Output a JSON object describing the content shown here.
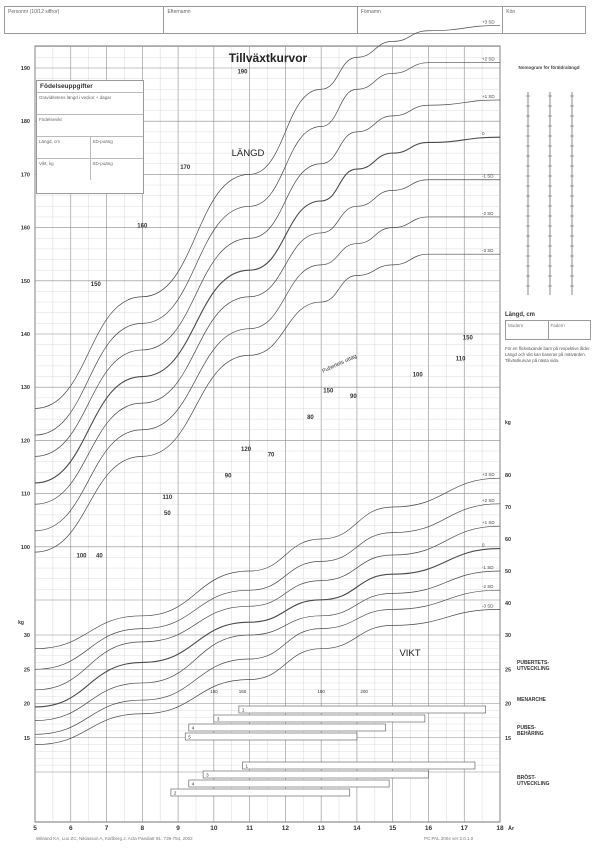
{
  "header": {
    "fields": [
      "Personnr (10/12 siffror)",
      "Efternamn",
      "Förnamn",
      "Kön"
    ]
  },
  "chart_data": {
    "type": "line",
    "title": "Tillväxtkurvor",
    "xlabel": "År",
    "x_unit": "År",
    "y_unit_weight": "kg",
    "xlim": [
      5,
      18
    ],
    "ylim_height": [
      90,
      200
    ],
    "ylim_weight": [
      10,
      30
    ],
    "x_ticks": [
      5,
      6,
      7,
      8,
      9,
      10,
      11,
      12,
      13,
      14,
      15,
      16,
      17,
      18
    ],
    "height_ticks_left": [
      100,
      110,
      120,
      130,
      140,
      150,
      160,
      170,
      180,
      190
    ],
    "weight_ticks_left": [
      15,
      20,
      25,
      30
    ],
    "weight_ticks_right": [
      15,
      20,
      25,
      30,
      40,
      50,
      60,
      70,
      80
    ],
    "section_labels": {
      "height": "LÄNGD",
      "weight": "VIKT",
      "puberty": "Pubertets uttag"
    },
    "grid": true,
    "height_series": [
      {
        "name": "+3 SD",
        "x": [
          5,
          8,
          11,
          13,
          14,
          15,
          16,
          18
        ],
        "y": [
          126,
          147,
          170,
          186,
          192,
          195,
          197,
          198
        ]
      },
      {
        "name": "+2 SD",
        "x": [
          5,
          8,
          11,
          13,
          14,
          15,
          16,
          18
        ],
        "y": [
          121,
          142,
          164,
          179,
          186,
          189,
          191,
          191
        ]
      },
      {
        "name": "+1 SD",
        "x": [
          5,
          8,
          11,
          13,
          14,
          15,
          16,
          18
        ],
        "y": [
          117,
          137,
          158,
          172,
          178,
          181,
          183,
          184
        ]
      },
      {
        "name": "0",
        "x": [
          5,
          8,
          11,
          13,
          14,
          15,
          16,
          18
        ],
        "y": [
          112,
          132,
          152,
          165,
          171,
          174,
          176,
          177
        ]
      },
      {
        "name": "-1 SD",
        "x": [
          5,
          8,
          11,
          13,
          14,
          15,
          16,
          18
        ],
        "y": [
          108,
          127,
          147,
          159,
          164,
          167,
          169,
          169
        ]
      },
      {
        "name": "-2 SD",
        "x": [
          5,
          8,
          11,
          13,
          14,
          15,
          16,
          18
        ],
        "y": [
          103,
          122,
          141,
          153,
          157,
          160,
          162,
          162
        ]
      },
      {
        "name": "-3 SD",
        "x": [
          5,
          8,
          11,
          13,
          14,
          15,
          16,
          18
        ],
        "y": [
          99,
          117,
          136,
          146,
          151,
          153,
          155,
          155
        ]
      }
    ],
    "weight_series": [
      {
        "name": "+3 SD",
        "x": [
          5,
          8,
          11,
          13,
          15,
          18
        ],
        "y": [
          28,
          36,
          50,
          60,
          70,
          79
        ]
      },
      {
        "name": "+2 SD",
        "x": [
          5,
          8,
          11,
          13,
          15,
          18
        ],
        "y": [
          25,
          32,
          44,
          53,
          62,
          71
        ]
      },
      {
        "name": "+1 SD",
        "x": [
          5,
          8,
          11,
          13,
          15,
          18
        ],
        "y": [
          22,
          29,
          39,
          47,
          55,
          64
        ]
      },
      {
        "name": "0",
        "x": [
          5,
          8,
          11,
          13,
          15,
          18
        ],
        "y": [
          19.5,
          26,
          34,
          41,
          49,
          57
        ]
      },
      {
        "name": "-1 SD",
        "x": [
          5,
          8,
          11,
          13,
          15,
          18
        ],
        "y": [
          17.5,
          23,
          30,
          36,
          43,
          50
        ]
      },
      {
        "name": "-2 SD",
        "x": [
          5,
          8,
          11,
          13,
          15,
          18
        ],
        "y": [
          15.5,
          20.5,
          26.5,
          32,
          38,
          44
        ]
      },
      {
        "name": "-3 SD",
        "x": [
          5,
          8,
          11,
          13,
          15,
          18
        ],
        "y": [
          14,
          18.5,
          23.5,
          28,
          33,
          38
        ]
      }
    ],
    "sd_labels": [
      "+3 SD",
      "+2 SD",
      "+1 SD",
      "0",
      "-1 SD",
      "-2 SD",
      "-3 SD"
    ],
    "height_annotations": [
      {
        "text": "190",
        "x": 10.8,
        "y": 189
      },
      {
        "text": "170",
        "x": 9.2,
        "y": 171
      },
      {
        "text": "160",
        "x": 8.0,
        "y": 160
      },
      {
        "text": "150",
        "x": 6.7,
        "y": 149
      },
      {
        "text": "100",
        "x": 6.3,
        "y": 98
      },
      {
        "text": "40",
        "x": 6.8,
        "y": 98
      },
      {
        "text": "150",
        "x": 17.1,
        "y": 139
      },
      {
        "text": "110",
        "x": 16.9,
        "y": 135
      },
      {
        "text": "100",
        "x": 15.7,
        "y": 132
      },
      {
        "text": "150",
        "x": 13.2,
        "y": 129
      },
      {
        "text": "90",
        "x": 13.9,
        "y": 128
      },
      {
        "text": "80",
        "x": 12.7,
        "y": 124
      },
      {
        "text": "120",
        "x": 10.9,
        "y": 118
      },
      {
        "text": "70",
        "x": 11.6,
        "y": 117
      },
      {
        "text": "90",
        "x": 10.4,
        "y": 113
      },
      {
        "text": "110",
        "x": 8.7,
        "y": 109
      },
      {
        "text": "50",
        "x": 8.7,
        "y": 106
      }
    ],
    "puberty_bars": [
      {
        "label": "1",
        "x0": 10.7,
        "x1": 17.6
      },
      {
        "label": "3",
        "x0": 10.0,
        "x1": 15.9
      },
      {
        "label": "4",
        "x0": 9.3,
        "x1": 14.8
      },
      {
        "label": "5",
        "x0": 9.2,
        "x1": 14.0
      },
      {
        "label": "1",
        "x0": 10.8,
        "x1": 17.3
      },
      {
        "label": "3",
        "x0": 9.7,
        "x1": 16.0
      },
      {
        "label": "4",
        "x0": 9.3,
        "x1": 14.9
      },
      {
        "label": "2",
        "x0": 8.8,
        "x1": 13.8
      }
    ],
    "puberty_scale_labels": [
      "150",
      "160",
      "180",
      "200"
    ]
  },
  "info_box": {
    "title": "Födelseuppgifter",
    "rows": [
      [
        "Graviditetens längd i veckor + dagar",
        ""
      ],
      [
        "Födelsevikt",
        ""
      ],
      [
        "Längd, cm",
        "SD-poäng"
      ],
      [
        "Vikt, kg",
        "SD-poäng"
      ]
    ]
  },
  "parent_box": {
    "title": "Nomogram för föräldralängd"
  },
  "right_panel": {
    "length_title": "Längd, cm",
    "length_cols": [
      "Modern",
      "Fadern"
    ],
    "note": "För en flickväxande barn på respektive ålder. Längd och vikt kan baseras på mätvärden. Tillväxtkurvan på nästa sida."
  },
  "side_labels": {
    "puberty": "PUBERTETS-\nUTVECKLING",
    "menarche": "MENARCHE",
    "pubes": "PUBES-\nBEHÅRING",
    "breast": "BRÖST-\nUTVECKLING"
  },
  "footer": {
    "left": "Wikland KA, Luo ZC, Niklasson A, Karlberg J. Acta Paediatr 91: 739-754, 2002",
    "right": "PC PAL 2004 ver 2.0.1.0"
  },
  "colors": {
    "grid": "#c8c8c8",
    "grid_major": "#8c8c8c",
    "curve": "#4a4a4a"
  }
}
